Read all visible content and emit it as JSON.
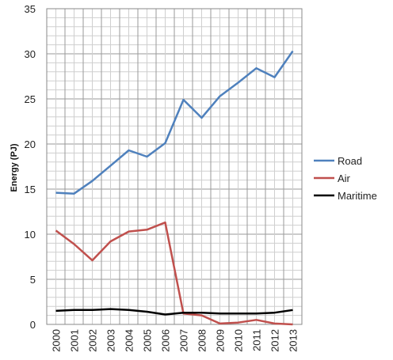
{
  "chart_data": {
    "type": "line",
    "xlabel": "",
    "ylabel": "Energy (PJ)",
    "x": [
      "2000",
      "2001",
      "2002",
      "2003",
      "2004",
      "2005",
      "2006",
      "2007",
      "2008",
      "2009",
      "2010",
      "2011",
      "2012",
      "2013"
    ],
    "ylim": [
      0,
      35
    ],
    "yticks": [
      0,
      5,
      10,
      15,
      20,
      25,
      30,
      35
    ],
    "grid": true,
    "legend_position": "right",
    "series": [
      {
        "name": "Road",
        "color": "#4f81bd",
        "values": [
          14.6,
          14.5,
          15.9,
          17.6,
          19.3,
          18.6,
          20.1,
          24.9,
          22.9,
          25.3,
          26.8,
          28.4,
          27.4,
          30.3
        ]
      },
      {
        "name": "Air",
        "color": "#c0504d",
        "values": [
          10.4,
          8.9,
          7.1,
          9.2,
          10.3,
          10.5,
          11.3,
          1.2,
          1.0,
          0.1,
          0.2,
          0.5,
          0.1,
          0.0
        ]
      },
      {
        "name": "Maritime",
        "color": "#000000",
        "values": [
          1.5,
          1.6,
          1.6,
          1.7,
          1.6,
          1.4,
          1.1,
          1.3,
          1.3,
          1.2,
          1.2,
          1.2,
          1.3,
          1.6
        ]
      }
    ]
  }
}
